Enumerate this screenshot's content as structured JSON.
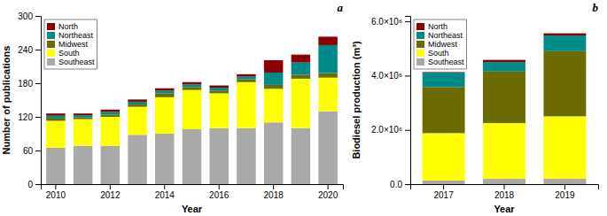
{
  "chart_data": [
    {
      "type": "bar",
      "stacked": true,
      "categories": [
        2010,
        null,
        2012,
        null,
        2014,
        null,
        2016,
        null,
        2018,
        null,
        2020
      ],
      "series": [
        {
          "name": "Southeast",
          "color": "#A9A9A9",
          "values": [
            65,
            68,
            68,
            88,
            90,
            98,
            100,
            100,
            110,
            100,
            130
          ]
        },
        {
          "name": "South",
          "color": "#FFFF00",
          "values": [
            48,
            48,
            52,
            50,
            65,
            70,
            62,
            82,
            60,
            88,
            60
          ]
        },
        {
          "name": "Midwest",
          "color": "#6B6B00",
          "values": [
            4,
            3,
            4,
            4,
            7,
            5,
            5,
            5,
            7,
            7,
            8
          ]
        },
        {
          "name": "Northeast",
          "color": "#008B8B",
          "values": [
            5,
            4,
            5,
            5,
            5,
            5,
            5,
            5,
            22,
            22,
            50
          ]
        },
        {
          "name": "North",
          "color": "#8B0000",
          "values": [
            4,
            3,
            4,
            4,
            4,
            4,
            4,
            4,
            22,
            14,
            15
          ]
        }
      ],
      "xlabel": "Year",
      "ylabel": "Number of publications",
      "annotations": [
        "a"
      ],
      "ylim": [
        0,
        300
      ],
      "yticks": [
        0,
        60,
        120,
        180,
        240,
        300
      ],
      "legend": "upper left",
      "grid": false
    },
    {
      "type": "bar",
      "stacked": true,
      "categories": [
        2017,
        2018,
        2019
      ],
      "series": [
        {
          "name": "Southeast",
          "color": "#A9A9A9",
          "values": [
            130000,
            200000,
            200000
          ]
        },
        {
          "name": "South",
          "color": "#FFFF00",
          "values": [
            1750000,
            2050000,
            2300000
          ]
        },
        {
          "name": "Midwest",
          "color": "#6B6B00",
          "values": [
            1700000,
            1900000,
            2400000
          ]
        },
        {
          "name": "Northeast",
          "color": "#008B8B",
          "values": [
            530000,
            350000,
            580000
          ]
        },
        {
          "name": "North",
          "color": "#8B0000",
          "values": [
            20000,
            80000,
            80000
          ]
        }
      ],
      "xlabel": "Year",
      "ylabel": "Biodiesel production (m³)",
      "annotations": [
        "b"
      ],
      "ylim": [
        0,
        6200000
      ],
      "yticks": [
        {
          "value": 0,
          "label": "0.0"
        },
        {
          "value": 2000000,
          "label": "2.0×10⁶"
        },
        {
          "value": 4000000,
          "label": "4.0×10⁶"
        },
        {
          "value": 6000000,
          "label": "6.0×10⁶"
        }
      ],
      "legend": "upper left",
      "grid": false
    }
  ]
}
